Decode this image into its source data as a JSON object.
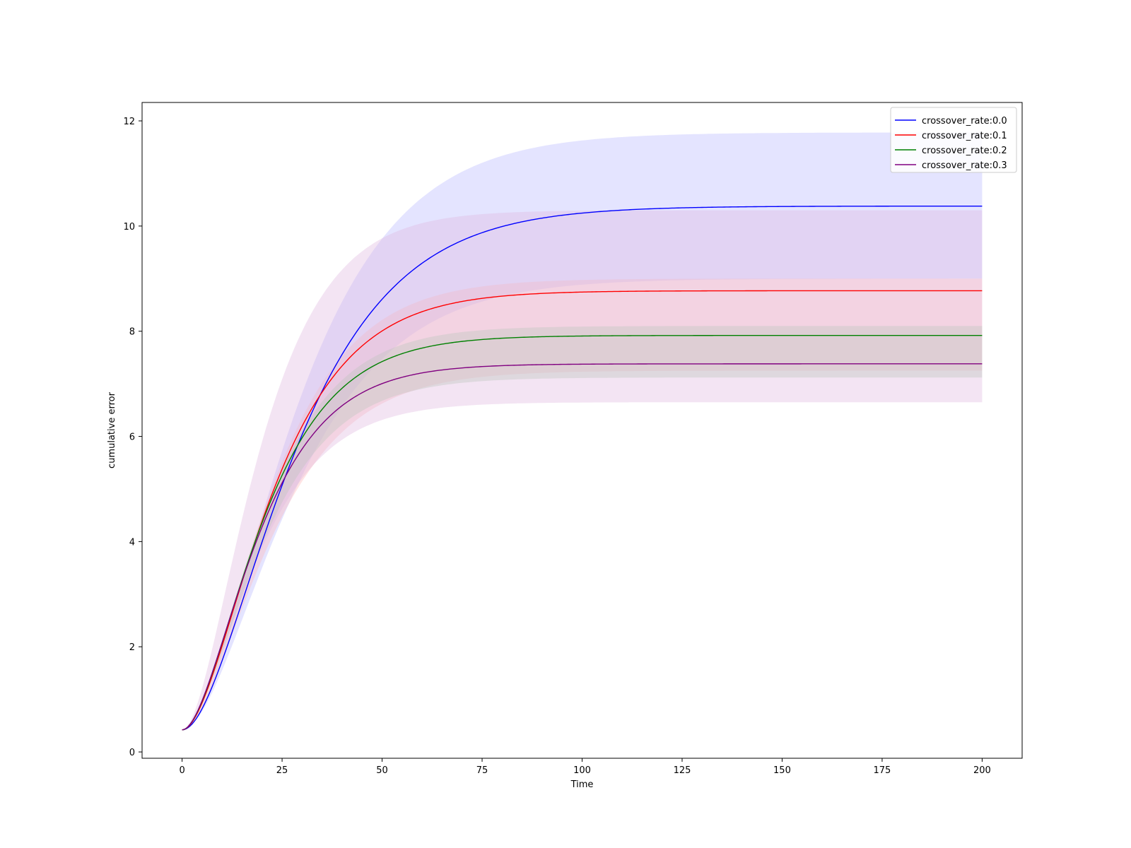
{
  "chart_data": {
    "type": "line",
    "title": "",
    "xlabel": "Time",
    "ylabel": "cumulative error",
    "xlim": [
      -10,
      210
    ],
    "ylim": [
      -0.12,
      12.35
    ],
    "x_ticks": [
      0,
      25,
      50,
      75,
      100,
      125,
      150,
      175,
      200
    ],
    "y_ticks": [
      0,
      2,
      4,
      6,
      8,
      10,
      12
    ],
    "x_range": [
      0,
      200
    ],
    "grid": false,
    "legend_position": "top-right",
    "error_bars": true,
    "series": [
      {
        "name": "crossover_rate:0.0",
        "color": "#0000ff",
        "band_color": "#b8b8ff",
        "start": 0.42,
        "plateau": 10.38,
        "rate": 0.063,
        "band_upper_plateau": 11.78,
        "band_lower_plateau": 9.0
      },
      {
        "name": "crossover_rate:0.1",
        "color": "#ff0000",
        "band_color": "#ffb8b8",
        "start": 0.42,
        "plateau": 8.77,
        "rate": 0.08,
        "band_upper_plateau": 9.0,
        "band_lower_plateau": 7.25
      },
      {
        "name": "crossover_rate:0.2",
        "color": "#008000",
        "band_color": "#a8cca8",
        "start": 0.42,
        "plateau": 7.92,
        "rate": 0.088,
        "band_upper_plateau": 8.1,
        "band_lower_plateau": 7.12
      },
      {
        "name": "crossover_rate:0.3",
        "color": "#800080",
        "band_color": "#dfb8df",
        "start": 0.42,
        "plateau": 7.38,
        "rate": 0.093,
        "band_upper_plateau": 10.3,
        "band_lower_plateau": 6.65
      }
    ]
  }
}
